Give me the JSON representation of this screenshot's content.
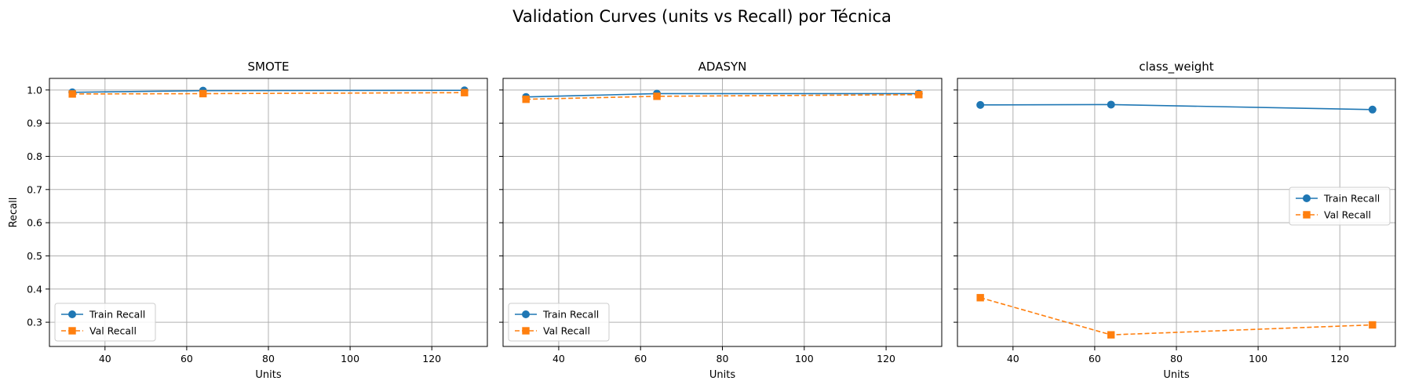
{
  "figure": {
    "title": "Validation Curves (units vs Recall) por Técnica",
    "colors": {
      "train": "#1f77b4",
      "val": "#ff7f0e",
      "grid": "#b0b0b0"
    }
  },
  "chart_data": [
    {
      "type": "line",
      "title": "SMOTE",
      "xlabel": "Units",
      "ylabel": "Recall",
      "x": [
        32,
        64,
        128
      ],
      "xlim": [
        26.4,
        133.6
      ],
      "ylim": [
        0.227,
        1.035
      ],
      "xticks": [
        40,
        60,
        80,
        100,
        120
      ],
      "yticks": [
        0.3,
        0.4,
        0.5,
        0.6,
        0.7,
        0.8,
        0.9,
        1.0
      ],
      "grid": true,
      "legend_position": "lower-left",
      "series": [
        {
          "name": "Train Recall",
          "values": [
            0.993,
            0.998,
            0.999
          ],
          "marker": "circle",
          "style": "solid",
          "color": "#1f77b4"
        },
        {
          "name": "Val Recall",
          "values": [
            0.988,
            0.989,
            0.992
          ],
          "marker": "square",
          "style": "dashed",
          "color": "#ff7f0e"
        }
      ]
    },
    {
      "type": "line",
      "title": "ADASYN",
      "xlabel": "Units",
      "ylabel": "",
      "x": [
        32,
        64,
        128
      ],
      "xlim": [
        26.4,
        133.6
      ],
      "ylim": [
        0.227,
        1.035
      ],
      "xticks": [
        40,
        60,
        80,
        100,
        120
      ],
      "yticks": [
        0.3,
        0.4,
        0.5,
        0.6,
        0.7,
        0.8,
        0.9,
        1.0
      ],
      "grid": true,
      "legend_position": "lower-left",
      "series": [
        {
          "name": "Train Recall",
          "values": [
            0.979,
            0.989,
            0.989
          ],
          "marker": "circle",
          "style": "solid",
          "color": "#1f77b4"
        },
        {
          "name": "Val Recall",
          "values": [
            0.972,
            0.981,
            0.986
          ],
          "marker": "square",
          "style": "dashed",
          "color": "#ff7f0e"
        }
      ]
    },
    {
      "type": "line",
      "title": "class_weight",
      "xlabel": "Units",
      "ylabel": "",
      "x": [
        32,
        64,
        128
      ],
      "xlim": [
        26.4,
        133.6
      ],
      "ylim": [
        0.227,
        1.035
      ],
      "xticks": [
        40,
        60,
        80,
        100,
        120
      ],
      "yticks": [
        0.3,
        0.4,
        0.5,
        0.6,
        0.7,
        0.8,
        0.9,
        1.0
      ],
      "grid": true,
      "legend_position": "center-right",
      "series": [
        {
          "name": "Train Recall",
          "values": [
            0.955,
            0.956,
            0.941
          ],
          "marker": "circle",
          "style": "solid",
          "color": "#1f77b4"
        },
        {
          "name": "Val Recall",
          "values": [
            0.374,
            0.262,
            0.292
          ],
          "marker": "square",
          "style": "dashed",
          "color": "#ff7f0e"
        }
      ]
    }
  ]
}
